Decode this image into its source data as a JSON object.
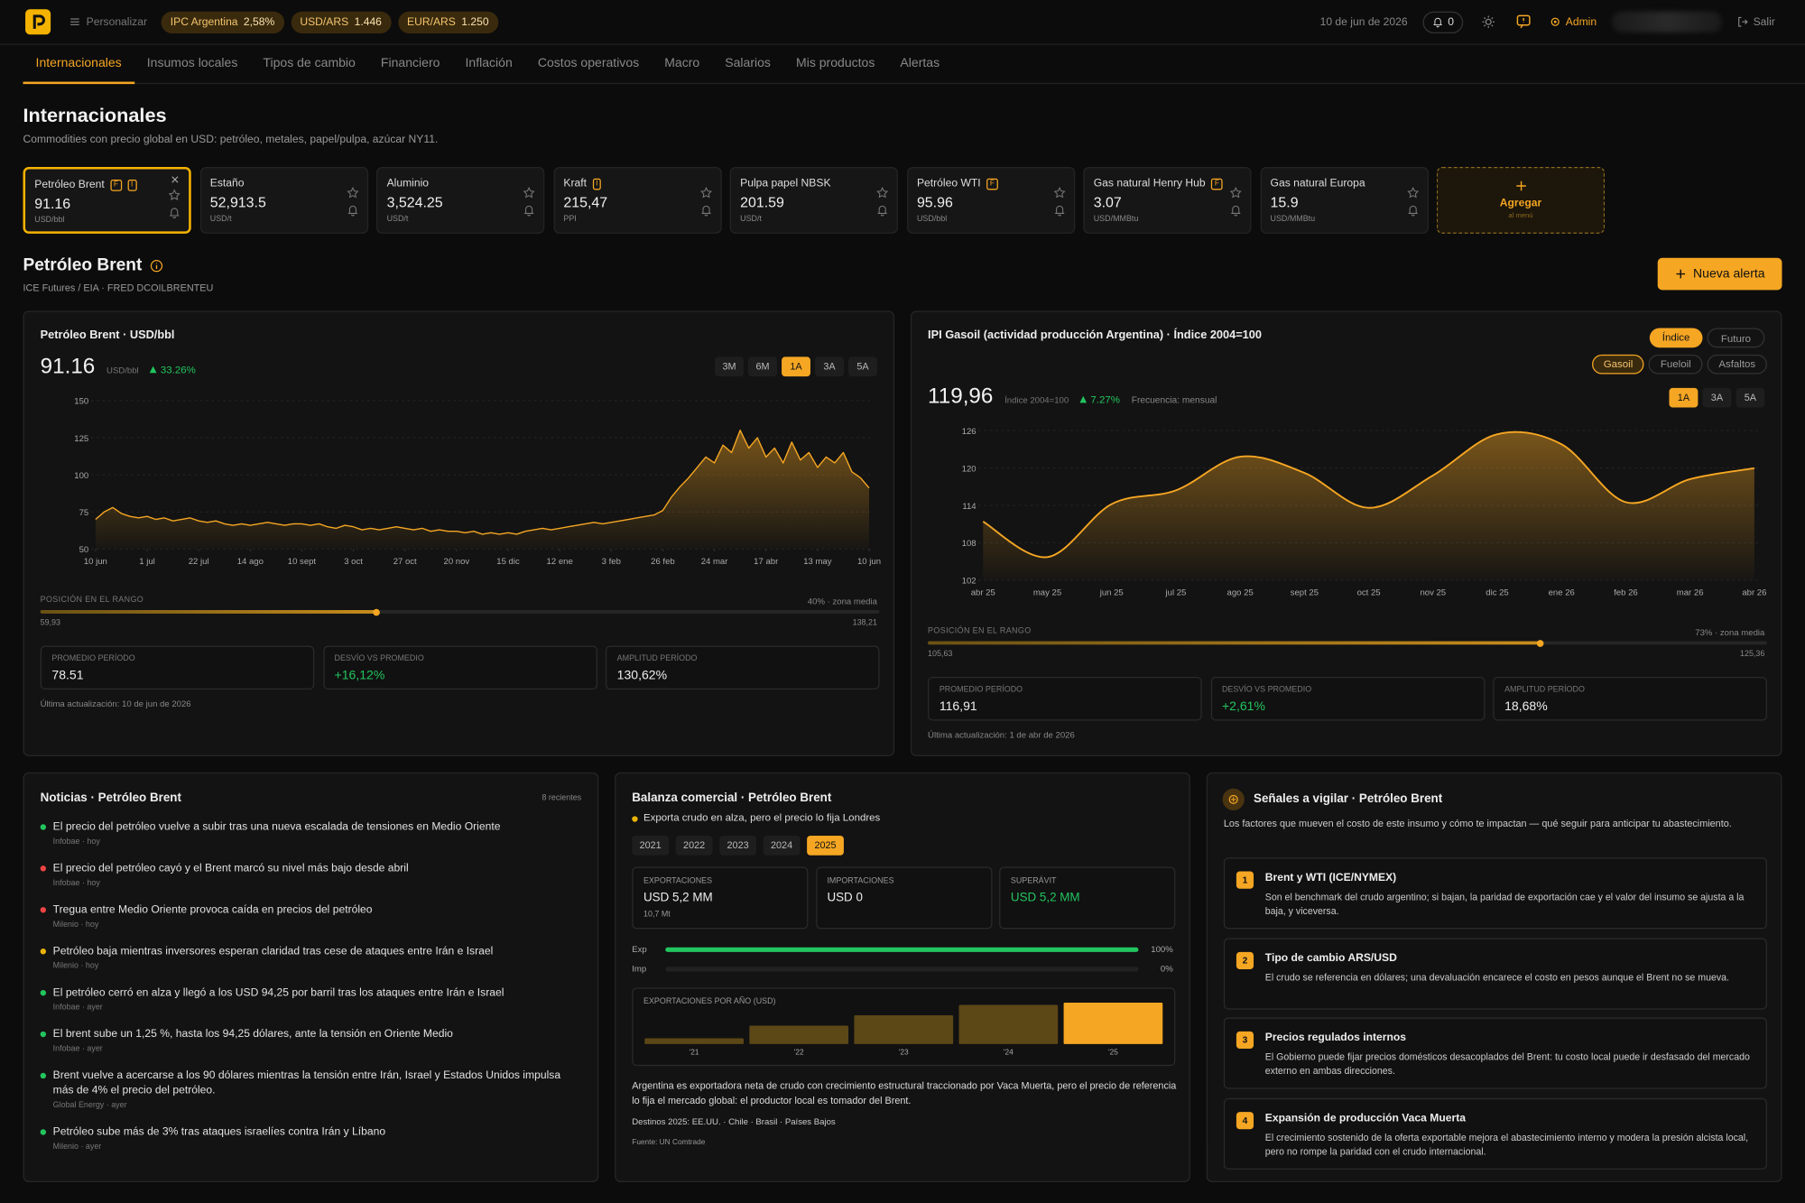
{
  "header": {
    "personalize": "Personalizar",
    "pills": [
      {
        "name": "IPC Argentina",
        "value": "2,58%"
      },
      {
        "name": "USD/ARS",
        "value": "1.446"
      },
      {
        "name": "EUR/ARS",
        "value": "1.250"
      }
    ],
    "date": "10 de jun de 2026",
    "notifications": "0",
    "admin": "Admin",
    "logout": "Salir"
  },
  "tabs": [
    "Internacionales",
    "Insumos locales",
    "Tipos de cambio",
    "Financiero",
    "Inflación",
    "Costos operativos",
    "Macro",
    "Salarios",
    "Mis productos",
    "Alertas"
  ],
  "active_tab": 0,
  "page": {
    "title": "Internacionales",
    "subtitle": "Commodities con precio global en USD: petróleo, metales, papel/pulpa, azúcar NY11."
  },
  "cards": [
    {
      "name": "Petróleo Brent",
      "badges": [
        "F",
        "I"
      ],
      "value": "91.16",
      "unit": "USD/bbl"
    },
    {
      "name": "Estaño",
      "badges": [],
      "value": "52,913.5",
      "unit": "USD/t"
    },
    {
      "name": "Aluminio",
      "badges": [],
      "value": "3,524.25",
      "unit": "USD/t"
    },
    {
      "name": "Kraft",
      "badges": [
        "I"
      ],
      "value": "215,47",
      "unit": "PPI"
    },
    {
      "name": "Pulpa papel NBSK",
      "badges": [],
      "value": "201.59",
      "unit": "USD/t"
    },
    {
      "name": "Petróleo WTI",
      "badges": [
        "F"
      ],
      "value": "95.96",
      "unit": "USD/bbl"
    },
    {
      "name": "Gas natural Henry Hub",
      "badges": [
        "F"
      ],
      "value": "3.07",
      "unit": "USD/MMBtu"
    },
    {
      "name": "Gas natural Europa",
      "badges": [],
      "value": "15.9",
      "unit": "USD/MMBtu"
    }
  ],
  "selected_card": 0,
  "add_card": {
    "label": "Agregar",
    "sub": "al menú"
  },
  "detail": {
    "title": "Petróleo Brent",
    "source": "ICE Futures / EIA · FRED DCOILBRENTEU",
    "button": "Nueva alerta"
  },
  "chart_data": [
    {
      "type": "line",
      "title": "Petróleo Brent · USD/bbl",
      "current": "91.16",
      "unit": "USD/bbl",
      "change": "33.26%",
      "ranges": [
        "3M",
        "6M",
        "1A",
        "3A",
        "5A"
      ],
      "active_range": 2,
      "color": "#f5a623",
      "values": [
        70,
        75,
        78,
        74,
        72,
        71,
        72,
        70,
        71,
        69,
        70,
        71,
        69,
        68,
        69,
        67,
        66,
        67,
        66,
        67,
        68,
        67,
        66,
        67,
        67,
        66,
        67,
        65,
        64,
        66,
        65,
        63,
        64,
        63,
        64,
        65,
        64,
        63,
        64,
        62,
        63,
        62,
        62,
        61,
        62,
        60,
        61,
        60,
        61,
        60,
        62,
        63,
        64,
        63,
        64,
        65,
        66,
        67,
        68,
        67,
        68,
        69,
        70,
        71,
        72,
        73,
        76,
        85,
        92,
        98,
        105,
        112,
        108,
        120,
        115,
        130,
        118,
        125,
        112,
        118,
        108,
        122,
        110,
        115,
        105,
        112,
        108,
        115,
        102,
        98,
        91.16
      ],
      "xlim": [
        0,
        90
      ],
      "xticks": [
        {
          "value": 0,
          "label": "10 jun"
        },
        {
          "value": 6,
          "label": "1 jul"
        },
        {
          "value": 12,
          "label": "22 jul"
        },
        {
          "value": 18,
          "label": "14 ago"
        },
        {
          "value": 24,
          "label": "10 sept"
        },
        {
          "value": 30,
          "label": "3 oct"
        },
        {
          "value": 36,
          "label": "27 oct"
        },
        {
          "value": 42,
          "label": "20 nov"
        },
        {
          "value": 48,
          "label": "15 dic"
        },
        {
          "value": 54,
          "label": "12 ene"
        },
        {
          "value": 60,
          "label": "3 feb"
        },
        {
          "value": 66,
          "label": "26 feb"
        },
        {
          "value": 72,
          "label": "24 mar"
        },
        {
          "value": 78,
          "label": "17 abr"
        },
        {
          "value": 84,
          "label": "13 may"
        },
        {
          "value": 90,
          "label": "10 jun"
        }
      ],
      "ylim": [
        50,
        150
      ],
      "yticks": [
        50,
        75,
        100,
        125,
        150
      ],
      "grid": true,
      "smooth": false,
      "range": {
        "title": "POSICIÓN EN EL RANGO",
        "min": "59,93",
        "max": "138,21",
        "position": {
          "value": 40,
          "label": "40% · zona media"
        }
      },
      "stats": [
        {
          "label": "PROMEDIO PERÍODO",
          "value": "78.51"
        },
        {
          "label": "DESVÍO VS PROMEDIO",
          "value": "+16,12%",
          "positive": true
        },
        {
          "label": "AMPLITUD PERÍODO",
          "value": "130,62%"
        }
      ],
      "updated": "Última actualización: 10 de jun de 2026"
    },
    {
      "type": "line",
      "title": "IPI Gasoil (actividad producción Argentina) · Índice 2004=100",
      "current": "119,96",
      "unit": "Índice 2004=100",
      "change": "7.27%",
      "frequency": "Frecuencia: mensual",
      "modes": [
        "Índice",
        "Futuro"
      ],
      "active_mode": 0,
      "products": [
        "Gasoil",
        "Fueloil",
        "Asfaltos"
      ],
      "active_product": 0,
      "ranges": [
        "1A",
        "3A",
        "5A"
      ],
      "active_range": 0,
      "color": "#f5a623",
      "categories": [
        "abr 25",
        "may 25",
        "jun 25",
        "jul 25",
        "ago 25",
        "sept 25",
        "oct 25",
        "nov 25",
        "dic 25",
        "ene 26",
        "feb 26",
        "mar 26",
        "abr 26"
      ],
      "values": [
        111.4,
        105.7,
        114.2,
        116.4,
        121.8,
        119.2,
        113.6,
        118.8,
        125.4,
        123.8,
        114.5,
        118.2,
        119.96
      ],
      "ylim": [
        102,
        126
      ],
      "yticks": [
        102,
        108,
        114,
        120,
        126
      ],
      "grid": true,
      "smooth": true,
      "range": {
        "title": "POSICIÓN EN EL RANGO",
        "min": "105,63",
        "max": "125,36",
        "position": {
          "value": 73,
          "label": "73% · zona media"
        }
      },
      "stats": [
        {
          "label": "PROMEDIO PERÍODO",
          "value": "116,91"
        },
        {
          "label": "DESVÍO VS PROMEDIO",
          "value": "+2,61%",
          "positive": true
        },
        {
          "label": "AMPLITUD PERÍODO",
          "value": "18,68%"
        }
      ],
      "updated": "Última actualización: 1 de abr de 2026"
    },
    {
      "type": "bar",
      "title": "EXPORTACIONES POR AÑO (USD)",
      "categories": [
        "'21",
        "'22",
        "'23",
        "'24",
        "'25"
      ],
      "values": [
        0.7,
        2.3,
        3.6,
        4.9,
        5.2
      ],
      "color": "#f5a623",
      "muted_color": "#5c4716",
      "highlight": 4
    }
  ],
  "news": {
    "title": "Noticias · Petróleo Brent",
    "count": "8 recientes",
    "items": [
      {
        "title": "El precio del petróleo vuelve a subir tras una nueva escalada de tensiones en Medio Oriente",
        "source": "Infobae · hoy",
        "color": "#22c55e"
      },
      {
        "title": "El precio del petróleo cayó y el Brent marcó su nivel más bajo desde abril",
        "source": "Infobae · hoy",
        "color": "#ef4444"
      },
      {
        "title": "Tregua entre Medio Oriente provoca caída en precios del petróleo",
        "source": "Milenio · hoy",
        "color": "#ef4444"
      },
      {
        "title": "Petróleo baja mientras inversores esperan claridad tras cese de ataques entre Irán e Israel",
        "source": "Milenio · hoy",
        "color": "#eab308"
      },
      {
        "title": "El petróleo cerró en alza y llegó a los USD 94,25 por barril tras los ataques entre Irán e Israel",
        "source": "Infobae · ayer",
        "color": "#22c55e"
      },
      {
        "title": "El brent sube un 1,25 %, hasta los 94,25 dólares, ante la tensión en Oriente Medio",
        "source": "Infobae · ayer",
        "color": "#22c55e"
      },
      {
        "title": "Brent vuelve a acercarse a los 90 dólares mientras la tensión entre Irán, Israel y Estados Unidos impulsa más de 4% el precio del petróleo.",
        "source": "Global Energy · ayer",
        "color": "#22c55e"
      },
      {
        "title": "Petróleo sube más de 3% tras ataques israelíes contra Irán y Líbano",
        "source": "Milenio · ayer",
        "color": "#22c55e"
      }
    ]
  },
  "trade": {
    "title": "Balanza comercial · Petróleo Brent",
    "note": "Exporta crudo en alza, pero el precio lo fija Londres",
    "years": [
      "2021",
      "2022",
      "2023",
      "2024",
      "2025"
    ],
    "active_year": 4,
    "boxes": [
      {
        "label": "EXPORTACIONES",
        "value": "USD 5,2 MM",
        "sub": "10,7 Mt"
      },
      {
        "label": "IMPORTACIONES",
        "value": "USD 0"
      },
      {
        "label": "SUPERÁVIT",
        "value": "USD 5,2 MM",
        "positive": true
      }
    ],
    "flows": [
      {
        "name": "Exp",
        "value": 100,
        "label": "100%",
        "color": "#22c55e"
      },
      {
        "name": "Imp",
        "value": 0,
        "label": "0%",
        "color": "#22c55e"
      }
    ],
    "paragraph": "Argentina es exportadora neta de crudo con crecimiento estructural traccionado por Vaca Muerta, pero el precio de referencia lo fija el mercado global: el productor local es tomador del Brent.",
    "destinations": "Destinos 2025: EE.UU. · Chile · Brasil · Países Bajos",
    "source": "Fuente: UN Comtrade"
  },
  "signals": {
    "title": "Señales a vigilar · Petróleo Brent",
    "description": "Los factores que mueven el costo de este insumo y cómo te impactan — qué seguir para anticipar tu abastecimiento.",
    "items": [
      {
        "number": "1",
        "title": "Brent y WTI (ICE/NYMEX)",
        "body": "Son el benchmark del crudo argentino; si bajan, la paridad de exportación cae y el valor del insumo se ajusta a la baja, y viceversa."
      },
      {
        "number": "2",
        "title": "Tipo de cambio ARS/USD",
        "body": "El crudo se referencia en dólares; una devaluación encarece el costo en pesos aunque el Brent no se mueva."
      },
      {
        "number": "3",
        "title": "Precios regulados internos",
        "body": "El Gobierno puede fijar precios domésticos desacoplados del Brent: tu costo local puede ir desfasado del mercado externo en ambas direcciones."
      },
      {
        "number": "4",
        "title": "Expansión de producción Vaca Muerta",
        "body": "El crecimiento sostenido de la oferta exportable mejora el abastecimiento interno y modera la presión alcista local, pero no rompe la paridad con el crudo internacional."
      }
    ]
  }
}
